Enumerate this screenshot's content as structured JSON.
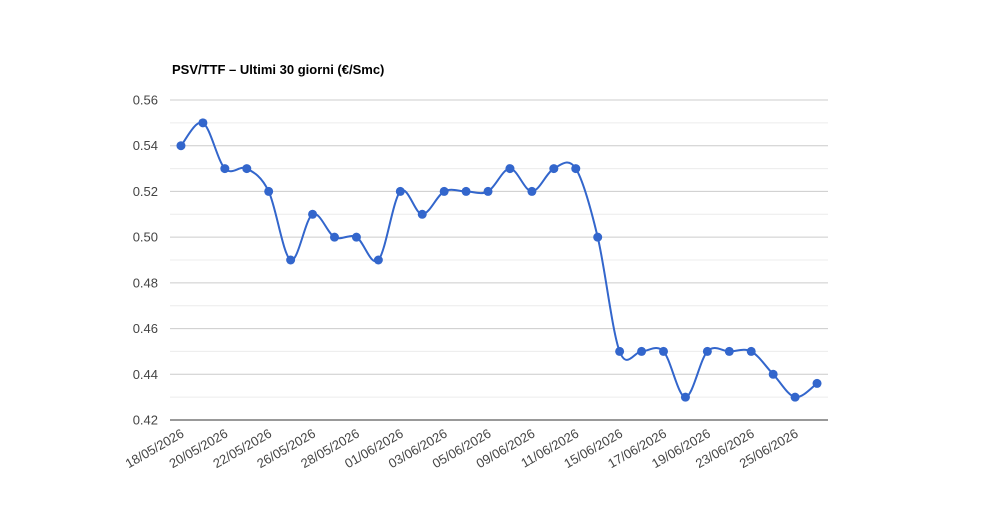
{
  "chart_data": {
    "type": "line",
    "title": "PSV/TTF – Ultimi 30 giorni (€/Smc)",
    "categories": [
      "18/05/2026",
      null,
      "20/05/2026",
      null,
      "22/05/2026",
      null,
      "26/05/2026",
      null,
      "28/05/2026",
      null,
      "01/06/2026",
      null,
      "03/06/2026",
      null,
      "05/06/2026",
      null,
      "09/06/2026",
      null,
      "11/06/2026",
      null,
      "15/06/2026",
      null,
      "17/06/2026",
      null,
      "19/06/2026",
      null,
      "23/06/2026",
      null,
      "25/06/2026",
      null
    ],
    "values": [
      0.54,
      0.55,
      0.53,
      0.53,
      0.52,
      0.49,
      0.51,
      0.5,
      0.5,
      0.49,
      0.52,
      0.51,
      0.52,
      0.52,
      0.52,
      0.53,
      0.52,
      0.53,
      0.53,
      0.5,
      0.45,
      0.45,
      0.45,
      0.43,
      0.45,
      0.45,
      0.45,
      0.44,
      0.43,
      0.436
    ],
    "color": "#3366cc",
    "ylim": [
      0.42,
      0.56
    ],
    "yticks": [
      0.42,
      0.44,
      0.46,
      0.48,
      {
        "value": 0.5,
        "label": "0.50"
      },
      0.52,
      0.54,
      0.56
    ],
    "grid": true,
    "minor_grid": true,
    "smooth": true
  }
}
